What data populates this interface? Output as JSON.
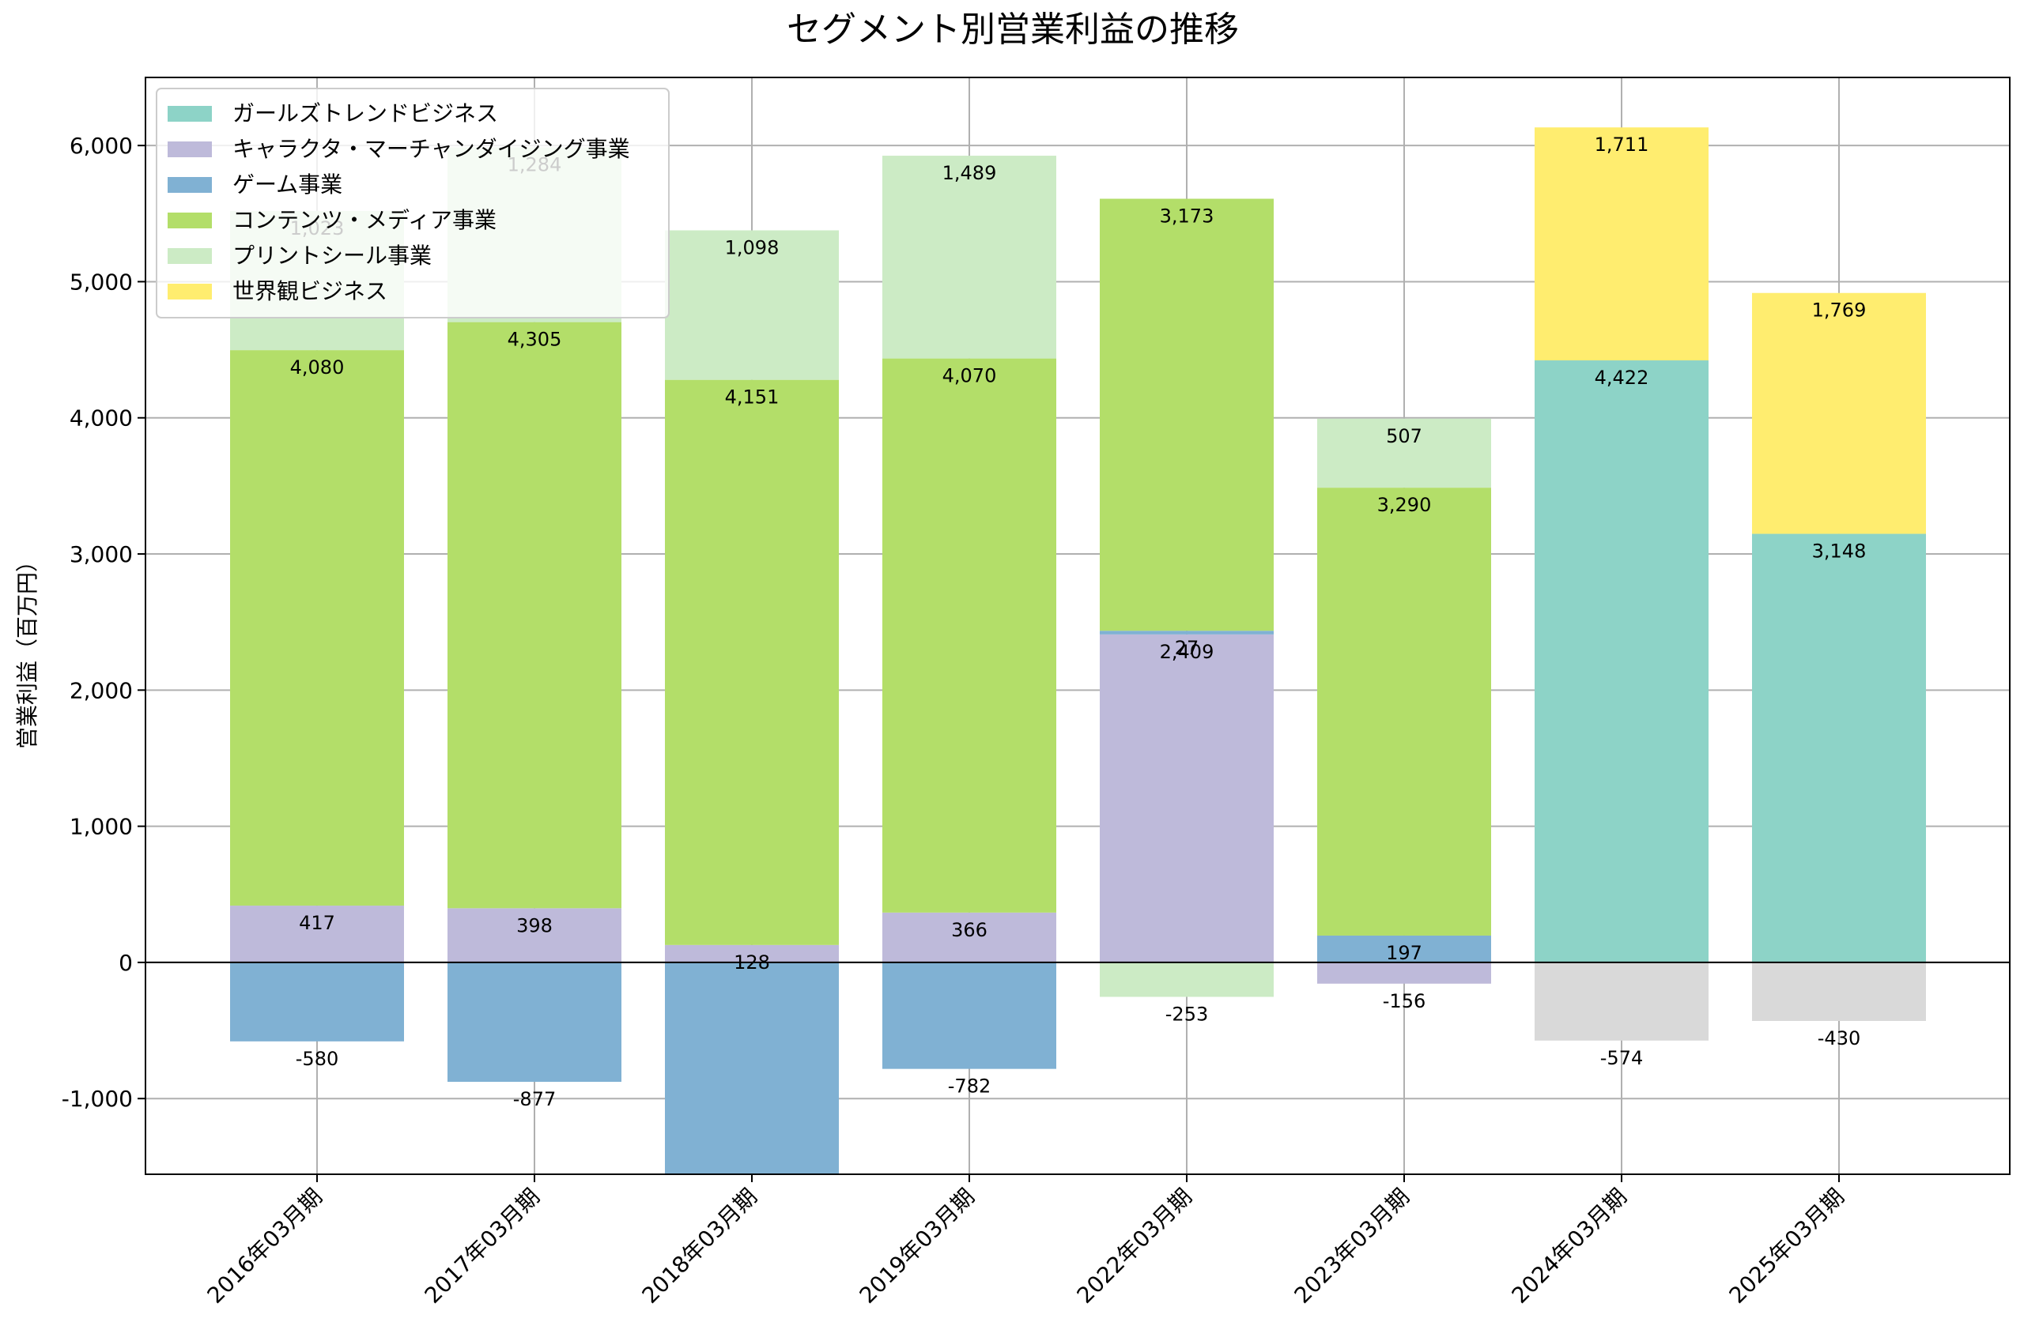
{
  "chart_data": {
    "type": "bar",
    "stacked": true,
    "title": "セグメント別営業利益の推移",
    "xlabel": "",
    "ylabel": "営業利益（百万円）",
    "ylim": [
      -1556,
      6500
    ],
    "yticks": [
      -1000,
      0,
      1000,
      2000,
      3000,
      4000,
      5000,
      6000
    ],
    "ytick_labels": [
      "-1,000",
      "0",
      "1,000",
      "2,000",
      "3,000",
      "4,000",
      "5,000",
      "6,000"
    ],
    "grid": true,
    "legend_position": "top-left",
    "categories": [
      "2016年03月期",
      "2017年03月期",
      "2018年03月期",
      "2019年03月期",
      "2022年03月期",
      "2023年03月期",
      "2024年03月期",
      "2025年03月期"
    ],
    "series": [
      {
        "name": "ガールズトレンドビジネス",
        "color": "#8dd3c7",
        "values": [
          null,
          null,
          null,
          null,
          null,
          null,
          4422,
          3148
        ]
      },
      {
        "name": "キャラクタ・マーチャンダイジング事業",
        "color": "#bebada",
        "values": [
          417,
          398,
          128,
          366,
          2409,
          -156,
          null,
          null
        ]
      },
      {
        "name": "ゲーム事業",
        "color": "#80b1d3",
        "values": [
          -580,
          -877,
          -1556,
          -782,
          27,
          197,
          null,
          null
        ]
      },
      {
        "name": "コンテンツ・メディア事業",
        "color": "#b3de69",
        "values": [
          4080,
          4305,
          4151,
          4070,
          3173,
          3290,
          null,
          null
        ]
      },
      {
        "name": "プリントシール事業",
        "color": "#ccebc5",
        "values": [
          1023,
          1284,
          1098,
          1489,
          -253,
          507,
          null,
          null
        ]
      },
      {
        "name": "世界観ビジネス",
        "color": "#ffed6f",
        "values": [
          null,
          null,
          null,
          null,
          null,
          null,
          1711,
          1769
        ]
      },
      {
        "name": "",
        "color": "#d9d9d9",
        "values": [
          null,
          null,
          null,
          null,
          null,
          null,
          -574,
          -430
        ]
      }
    ]
  }
}
